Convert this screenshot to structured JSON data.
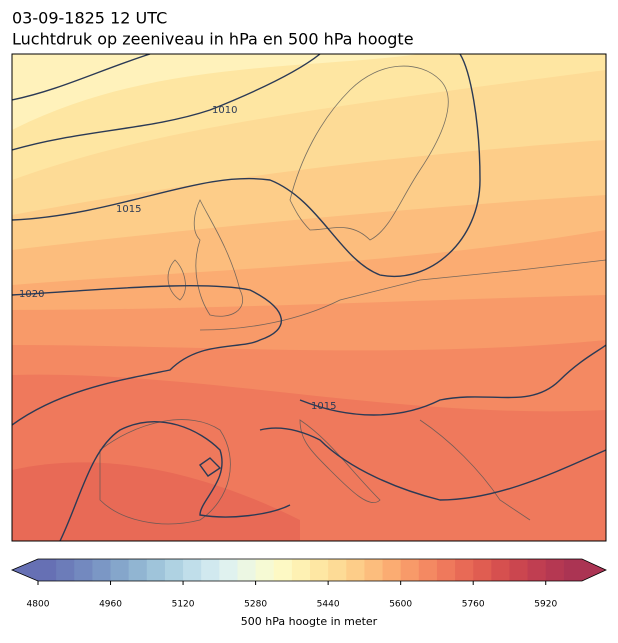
{
  "header": {
    "date": "03-09-1825 12 UTC",
    "title": "Luchtdruk op zeeniveau in hPa en 500 hPa hoogte"
  },
  "map": {
    "contour_labels": [
      1010,
      1015,
      1020,
      1015
    ]
  },
  "colorbar": {
    "label": "500 hPa hoogte in meter",
    "lim": [
      4800,
      6000
    ],
    "ticks": [
      4800,
      4960,
      5120,
      5280,
      5440,
      5600,
      5760,
      5920
    ],
    "colors": [
      "#6670b4",
      "#6c7cb9",
      "#7389bf",
      "#7b97c5",
      "#85a6cb",
      "#91b5d2",
      "#9fc4da",
      "#afd2e2",
      "#c0deea",
      "#d1e9ef",
      "#e0f2ef",
      "#ecf7e3",
      "#f6fad4",
      "#fdf9c4",
      "#fef1b3",
      "#fee7a3",
      "#fddb96",
      "#fdcd89",
      "#fcbd7d",
      "#fbac72",
      "#f89a69",
      "#f48962",
      "#ef795c",
      "#e86a56",
      "#e05d51",
      "#d6504f",
      "#cb464f",
      "#c03e51",
      "#b53852",
      "#ab3453"
    ]
  }
}
